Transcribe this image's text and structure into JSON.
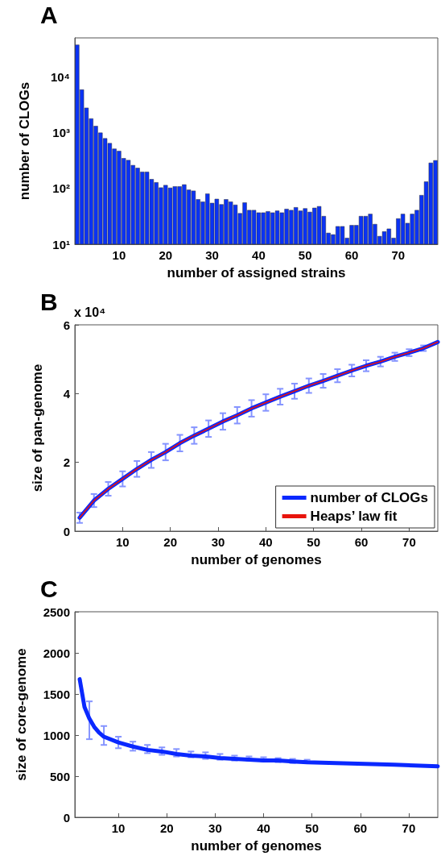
{
  "chart_data": [
    {
      "type": "bar",
      "title": "A",
      "xlabel": "number of assigned strains",
      "ylabel": "number of CLOGs",
      "color": "#0a32f5",
      "log": true,
      "categories": [
        null,
        null,
        null,
        null,
        null,
        null,
        null,
        null,
        null,
        "10",
        null,
        null,
        null,
        null,
        null,
        null,
        null,
        null,
        null,
        "20",
        null,
        null,
        null,
        null,
        null,
        null,
        null,
        null,
        null,
        "30",
        null,
        null,
        null,
        null,
        null,
        null,
        null,
        null,
        null,
        "40",
        null,
        null,
        null,
        null,
        null,
        null,
        null,
        null,
        null,
        "50",
        null,
        null,
        null,
        null,
        null,
        null,
        null,
        null,
        null,
        "60",
        null,
        null,
        null,
        null,
        null,
        null,
        null,
        null,
        null,
        "70",
        null,
        null,
        null,
        null,
        null,
        null,
        null,
        null
      ],
      "values": [
        37800,
        5940,
        2800,
        1800,
        1320,
        1000,
        793,
        650,
        516,
        471,
        349,
        323,
        262,
        234,
        199,
        199,
        147,
        129,
        104,
        115,
        103,
        109,
        109,
        118,
        95,
        91,
        64,
        58,
        81,
        55,
        65,
        52,
        64,
        58,
        51,
        36,
        56,
        41,
        41,
        37,
        37,
        39,
        37,
        40,
        37,
        43,
        41,
        46,
        40,
        44,
        38,
        45,
        48,
        32,
        16,
        15,
        21,
        21,
        13,
        22,
        22,
        32,
        32,
        35,
        23,
        14,
        17,
        19,
        13,
        29,
        35,
        24,
        35,
        41,
        76,
        133,
        289,
        320
      ],
      "ylim": [
        10,
        50000
      ],
      "yticks": [
        {
          "value": 10,
          "label": "10¹"
        },
        {
          "value": 100,
          "label": "10²"
        },
        {
          "value": 1000,
          "label": "10³"
        },
        {
          "value": 10000,
          "label": "10⁴"
        }
      ]
    },
    {
      "type": "line",
      "title": "B",
      "xlabel": "number of genomes",
      "ylabel": "size of pan-genome",
      "annotations": [
        "x 10⁴"
      ],
      "legend": "bottom right",
      "marker": "none",
      "series": [
        {
          "name": "number of CLOGs",
          "color": "#0a28ff",
          "x": [
            1,
            4,
            7,
            10,
            13,
            16,
            19,
            22,
            25,
            28,
            31,
            34,
            37,
            40,
            43,
            46,
            49,
            52,
            55,
            58,
            61,
            64,
            67,
            70,
            73,
            76
          ],
          "values": [
            0.39,
            0.89,
            1.23,
            1.52,
            1.81,
            2.07,
            2.3,
            2.56,
            2.78,
            2.98,
            3.19,
            3.37,
            3.57,
            3.74,
            3.91,
            4.07,
            4.23,
            4.37,
            4.52,
            4.67,
            4.81,
            4.93,
            5.07,
            5.19,
            5.32,
            5.5
          ],
          "errors": [
            0.15,
            0.19,
            0.2,
            0.22,
            0.23,
            0.23,
            0.24,
            0.24,
            0.24,
            0.24,
            0.24,
            0.24,
            0.24,
            0.24,
            0.23,
            0.22,
            0.21,
            0.2,
            0.19,
            0.17,
            0.16,
            0.14,
            0.12,
            0.1,
            0.08,
            null
          ]
        },
        {
          "name": "Heaps’ law fit",
          "color": "#e8140c",
          "x": [
            1,
            4,
            7,
            10,
            13,
            16,
            19,
            22,
            25,
            28,
            31,
            34,
            37,
            40,
            43,
            46,
            49,
            52,
            55,
            58,
            61,
            64,
            67,
            70,
            73,
            76
          ],
          "values": [
            0.39,
            0.89,
            1.23,
            1.52,
            1.81,
            2.07,
            2.3,
            2.56,
            2.78,
            2.98,
            3.19,
            3.37,
            3.57,
            3.74,
            3.91,
            4.07,
            4.23,
            4.37,
            4.52,
            4.67,
            4.81,
            4.93,
            5.07,
            5.19,
            5.32,
            5.5
          ]
        }
      ],
      "xlim": [
        0,
        76
      ],
      "xticks": [
        10,
        20,
        30,
        40,
        50,
        60,
        70
      ],
      "ylim": [
        0,
        6
      ],
      "yticks": [
        0,
        2,
        4,
        6
      ]
    },
    {
      "type": "line",
      "title": "C",
      "xlabel": "number of genomes",
      "ylabel": "size of core-genome",
      "marker": "none",
      "series": [
        {
          "color": "#0a28ff",
          "x": [
            2,
            3,
            4,
            5,
            6,
            7,
            10,
            13,
            16,
            19,
            22,
            25,
            28,
            31,
            34,
            37,
            40,
            43,
            46,
            49,
            55,
            61,
            67,
            76
          ],
          "values": [
            1680,
            1340,
            1200,
            1100,
            1030,
            980,
            910,
            860,
            820,
            800,
            770,
            750,
            740,
            720,
            710,
            700,
            690,
            690,
            680,
            670,
            660,
            650,
            640,
            620
          ],
          "errors": [
            null,
            null,
            [
              950,
              1410
            ],
            null,
            null,
            [
              880,
              1110
            ],
            [
              840,
              980
            ],
            [
              810,
              920
            ],
            [
              780,
              880
            ],
            [
              760,
              850
            ],
            [
              740,
              830
            ],
            [
              730,
              800
            ],
            [
              710,
              790
            ],
            [
              700,
              770
            ],
            [
              690,
              750
            ],
            [
              690,
              740
            ],
            [
              680,
              730
            ],
            [
              670,
              720
            ],
            [
              660,
              710
            ],
            [
              660,
              700
            ],
            null,
            null,
            null,
            null
          ]
        }
      ],
      "xlim": [
        1,
        76
      ],
      "xticks": [
        10,
        20,
        30,
        40,
        50,
        60,
        70
      ],
      "ylim": [
        0,
        2500
      ],
      "yticks": [
        0,
        500,
        1000,
        1500,
        2000,
        2500
      ]
    }
  ]
}
